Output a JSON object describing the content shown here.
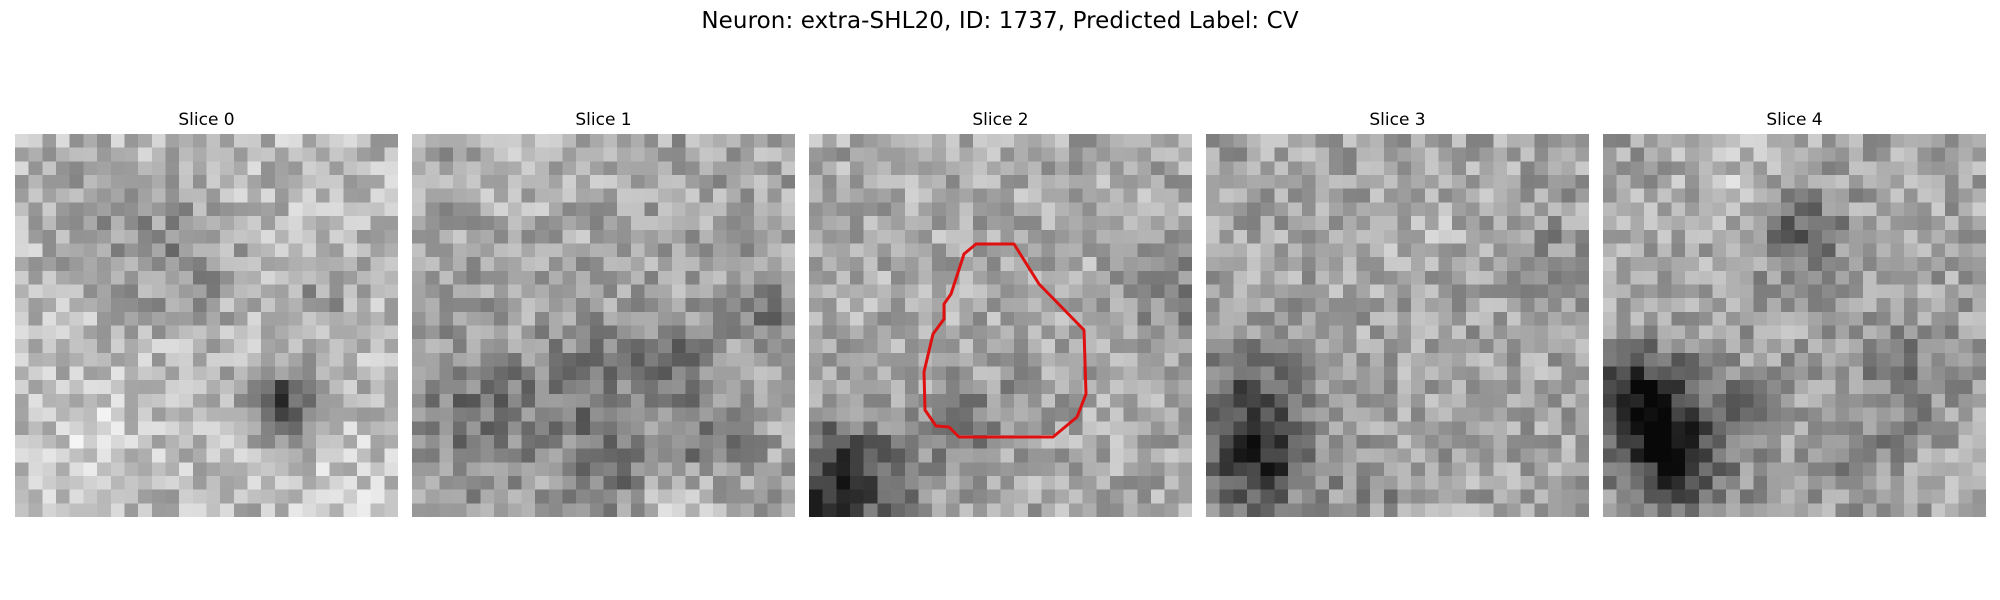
{
  "figure": {
    "title": "Neuron: extra-SHL20, ID: 1737, Predicted Label: CV"
  },
  "slices": [
    {
      "title": "Slice 0"
    },
    {
      "title": "Slice 1"
    },
    {
      "title": "Slice 2",
      "has_roi_contour": true
    },
    {
      "title": "Slice 3"
    },
    {
      "title": "Slice 4"
    }
  ],
  "colors": {
    "contour": "#e01010",
    "colormap": "gray"
  },
  "image": {
    "grid": 28,
    "colormap": "grayscale"
  }
}
